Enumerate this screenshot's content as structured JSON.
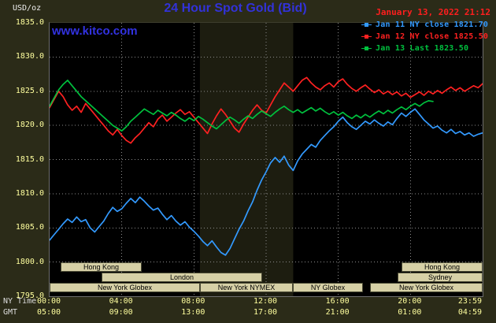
{
  "header": {
    "units_label": "USD/oz",
    "title": "24 Hour Spot Gold (Bid)",
    "datetime": "January 13, 2022 21:12",
    "website": "www.kitco.com"
  },
  "axes": {
    "yticks": [
      "1835.0",
      "1830.0",
      "1825.0",
      "1820.0",
      "1815.0",
      "1810.0",
      "1805.0",
      "1800.0",
      "1795.0"
    ],
    "x_ny_label": "NY Time",
    "x_gmt_label": "GMT",
    "xticks_ny": [
      "00:00",
      "04:00",
      "08:00",
      "12:00",
      "16:00",
      "20:00",
      "23:59"
    ],
    "xticks_gmt": [
      "05:00",
      "09:00",
      "13:00",
      "17:00",
      "21:00",
      "01:00",
      "04:59"
    ]
  },
  "colors": {
    "page_bg": "#2b2b18",
    "plot_bg": "#000000",
    "nymex_band": "#1d1d10",
    "grid": "#8c8c8c",
    "title_blue": "#3232d8",
    "website_blue": "#3232e0",
    "date_red": "#ff1e1e",
    "tick_label_yellow": "#ffff9e",
    "axis_name_white": "#dcdcdc",
    "session_tan": "#d6d0a6"
  },
  "sessions": [
    {
      "row": 0,
      "label": "Hong Kong",
      "start": 0.6,
      "end": 5.1
    },
    {
      "row": 0,
      "label": "Hong Kong",
      "start": 19.5,
      "end": 24
    },
    {
      "row": 1,
      "label": "London",
      "start": 2.9,
      "end": 11.8
    },
    {
      "row": 1,
      "label": "Sydney",
      "start": 19.3,
      "end": 24
    },
    {
      "row": 2,
      "label": "New York Globex",
      "start": 0,
      "end": 8.33
    },
    {
      "row": 2,
      "label": "New York NYMEX",
      "start": 8.33,
      "end": 13.5
    },
    {
      "row": 2,
      "label": "NY Globex",
      "start": 13.5,
      "end": 17.4
    },
    {
      "row": 2,
      "label": "New York Globex",
      "start": 17.75,
      "end": 24
    }
  ],
  "chart_data": {
    "type": "line",
    "title": "24 Hour Spot Gold (Bid)",
    "ylabel": "USD/oz",
    "ylim": [
      1795,
      1835
    ],
    "ytick_step": 5,
    "x_hours_range": [
      0,
      24
    ],
    "xtick_hours": [
      0,
      4,
      8,
      12,
      16,
      20,
      23.983
    ],
    "grid": true,
    "legend_position": "top-right",
    "highlight_band_hours": [
      8.33,
      13.5
    ],
    "series": [
      {
        "name": "Jan 11",
        "legend": "Jan 11 NY close 1821.70",
        "close": 1821.7,
        "color": "#339aff",
        "start_hour": 0,
        "step_hours": 0.25,
        "values": [
          1803.2,
          1804.0,
          1804.8,
          1805.6,
          1806.3,
          1805.8,
          1806.6,
          1805.9,
          1806.2,
          1805.0,
          1804.4,
          1805.2,
          1806.0,
          1807.1,
          1808.0,
          1807.4,
          1807.8,
          1808.6,
          1809.3,
          1808.7,
          1809.5,
          1808.9,
          1808.2,
          1807.6,
          1807.9,
          1807.0,
          1806.2,
          1806.8,
          1806.0,
          1805.4,
          1805.9,
          1805.1,
          1804.5,
          1803.8,
          1803.0,
          1802.4,
          1803.1,
          1802.2,
          1801.4,
          1801.0,
          1802.0,
          1803.4,
          1804.8,
          1806.0,
          1807.5,
          1808.8,
          1810.5,
          1812.0,
          1813.2,
          1814.5,
          1815.3,
          1814.6,
          1815.5,
          1814.2,
          1813.4,
          1814.8,
          1815.8,
          1816.5,
          1817.2,
          1816.8,
          1817.8,
          1818.5,
          1819.2,
          1819.8,
          1820.6,
          1821.2,
          1820.4,
          1819.8,
          1819.4,
          1820.0,
          1820.6,
          1820.2,
          1820.8,
          1820.3,
          1819.9,
          1820.5,
          1820.1,
          1821.0,
          1821.8,
          1821.3,
          1821.9,
          1822.4,
          1821.6,
          1820.8,
          1820.2,
          1819.6,
          1819.9,
          1819.3,
          1818.9,
          1819.4,
          1818.8,
          1819.1,
          1818.6,
          1818.9,
          1818.4,
          1818.7,
          1818.9
        ]
      },
      {
        "name": "Jan 12",
        "legend": "Jan 12 NY close 1825.50",
        "close": 1825.5,
        "color": "#ff2121",
        "start_hour": 0,
        "step_hours": 0.25,
        "values": [
          1822.6,
          1823.8,
          1825.0,
          1824.2,
          1823.0,
          1822.2,
          1822.8,
          1821.9,
          1823.2,
          1822.4,
          1821.6,
          1820.8,
          1820.0,
          1819.2,
          1818.6,
          1819.4,
          1818.5,
          1817.8,
          1817.4,
          1818.2,
          1818.8,
          1819.6,
          1820.4,
          1819.8,
          1820.9,
          1821.5,
          1820.6,
          1821.2,
          1821.8,
          1822.3,
          1821.6,
          1822.0,
          1821.2,
          1820.4,
          1819.6,
          1818.8,
          1820.2,
          1821.4,
          1822.4,
          1821.6,
          1820.6,
          1819.6,
          1819.0,
          1820.2,
          1821.2,
          1822.2,
          1823.0,
          1822.2,
          1821.8,
          1823.0,
          1824.2,
          1825.2,
          1826.2,
          1825.6,
          1825.0,
          1825.8,
          1826.6,
          1827.0,
          1826.2,
          1825.6,
          1825.2,
          1825.8,
          1826.2,
          1825.6,
          1826.4,
          1826.8,
          1826.0,
          1825.4,
          1825.0,
          1825.5,
          1825.9,
          1825.3,
          1824.8,
          1825.2,
          1824.6,
          1825.0,
          1824.5,
          1824.9,
          1824.3,
          1824.7,
          1824.1,
          1824.5,
          1824.9,
          1824.4,
          1825.0,
          1824.6,
          1825.1,
          1824.7,
          1825.2,
          1825.6,
          1825.1,
          1825.5,
          1825.0,
          1825.4,
          1825.8,
          1825.5,
          1826.1
        ]
      },
      {
        "name": "Jan 13",
        "legend": "Jan 13 Last 1823.50",
        "last": 1823.5,
        "color": "#00c13e",
        "start_hour": 0,
        "step_hours": 0.25,
        "values": [
          1822.8,
          1824.0,
          1825.2,
          1826.0,
          1826.6,
          1825.8,
          1825.0,
          1824.2,
          1823.6,
          1823.0,
          1822.4,
          1821.8,
          1821.2,
          1820.6,
          1820.0,
          1819.6,
          1819.2,
          1819.8,
          1820.6,
          1821.2,
          1821.8,
          1822.4,
          1822.0,
          1821.6,
          1822.2,
          1821.8,
          1821.4,
          1821.9,
          1821.5,
          1821.0,
          1820.6,
          1821.1,
          1820.7,
          1821.3,
          1820.9,
          1820.4,
          1819.9,
          1819.5,
          1820.1,
          1820.7,
          1821.2,
          1820.8,
          1820.3,
          1820.9,
          1821.4,
          1821.0,
          1821.6,
          1822.1,
          1821.7,
          1821.3,
          1821.9,
          1822.4,
          1822.8,
          1822.3,
          1821.9,
          1822.3,
          1821.8,
          1822.2,
          1822.6,
          1822.1,
          1822.5,
          1822.0,
          1821.6,
          1822.0,
          1821.5,
          1821.9,
          1821.4,
          1821.0,
          1821.5,
          1821.1,
          1821.6,
          1821.2,
          1821.7,
          1822.1,
          1821.7,
          1822.2,
          1821.8,
          1822.3,
          1822.7,
          1822.3,
          1822.8,
          1823.2,
          1822.8,
          1823.3,
          1823.6,
          1823.5
        ]
      }
    ]
  }
}
